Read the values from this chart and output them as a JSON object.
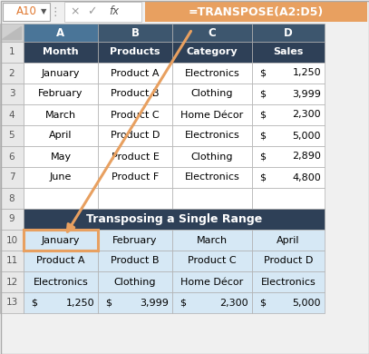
{
  "formula_cell": "A10",
  "formula_text": "=TRANSPOSE(A2:D5)",
  "col_headers": [
    "A",
    "B",
    "C",
    "D"
  ],
  "header_row": [
    "Month",
    "Products",
    "Category",
    "Sales"
  ],
  "data_rows": [
    [
      "January",
      "Product A",
      "Electronics",
      "1,250"
    ],
    [
      "February",
      "Product B",
      "Clothing",
      "3,999"
    ],
    [
      "March",
      "Product C",
      "Home Décor",
      "2,300"
    ],
    [
      "April",
      "Product D",
      "Electronics",
      "5,000"
    ],
    [
      "May",
      "Product E",
      "Clothing",
      "2,890"
    ],
    [
      "June",
      "Product F",
      "Electronics",
      "4,800"
    ]
  ],
  "section_title": "Transposing a Single Range",
  "transposed_rows": [
    [
      "January",
      "February",
      "March",
      "April"
    ],
    [
      "Product A",
      "Product B",
      "Product C",
      "Product D"
    ],
    [
      "Electronics",
      "Clothing",
      "Home Décor",
      "Electronics"
    ],
    [
      "1,250",
      "3,999",
      "2,300",
      "5,000"
    ]
  ],
  "dark_bg": "#2E4057",
  "white_bg": "#FFFFFF",
  "light_blue_bg": "#D6E8F5",
  "orange": "#E8A060",
  "col_hdr_bg": "#3D566E",
  "col_hdr_sel": "#4A7598",
  "row_hdr_bg": "#E8E8E8",
  "corner_bg": "#D0D0D0",
  "formula_bar_bg": "#F0F0F0",
  "grid": "#B0B0B0",
  "outer_bg": "#F0F0F0"
}
